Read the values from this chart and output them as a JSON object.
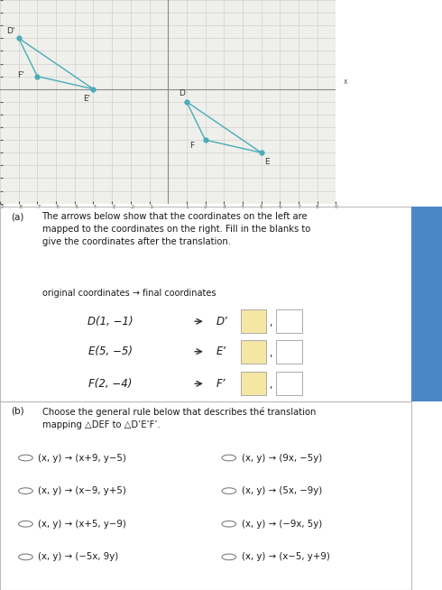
{
  "graph": {
    "xlim": [
      -9,
      9
    ],
    "ylim": [
      -9,
      7
    ],
    "triangle_DEF": {
      "D": [
        1,
        -1
      ],
      "E": [
        5,
        -5
      ],
      "F": [
        2,
        -4
      ]
    },
    "triangle_D_prime_E_prime_F_prime": {
      "D_prime": [
        -8,
        4
      ],
      "E_prime": [
        -4,
        0
      ],
      "F_prime": [
        -7,
        1
      ]
    },
    "color": "#4aacb8",
    "label_color": "#333333",
    "bg_color": "#efefeb",
    "grid_color": "#c8c8c8",
    "axis_color": "#888888"
  },
  "sidebar_color": "#4a86c8",
  "part_a": {
    "title": "The arrows below show that the coordinates on the left are\nmapped to the coordinates on the right. Fill in the blanks to\ngive the coordinates after the translation.",
    "subtitle": "original coordinates → final coordinates",
    "rows_orig": [
      "D(1, −1)",
      "E(5, −5)",
      "F(2, −4)"
    ],
    "rows_prime": [
      "D’",
      "E’",
      "F’"
    ],
    "box_fill_color": "#f5e6a3",
    "box_border_color": "#aaaaaa"
  },
  "part_b": {
    "title": "Choose the general rule below that describes thé translation\nmapping △DEF to △D’E’F’.",
    "options": [
      [
        "(x, y) → (x+9, y−5)",
        "(x, y) → (9x, −5y)"
      ],
      [
        "(x, y) → (x−9, y+5)",
        "(x, y) → (5x, −9y)"
      ],
      [
        "(x, y) → (x+5, y−9)",
        "(x, y) → (−9x, 5y)"
      ],
      [
        "(x, y) → (−5x, 9y)",
        "(x, y) → (x−5, y+9)"
      ]
    ]
  },
  "bg_color": "#ffffff",
  "border_color": "#cccccc",
  "text_color": "#1a1a1a"
}
